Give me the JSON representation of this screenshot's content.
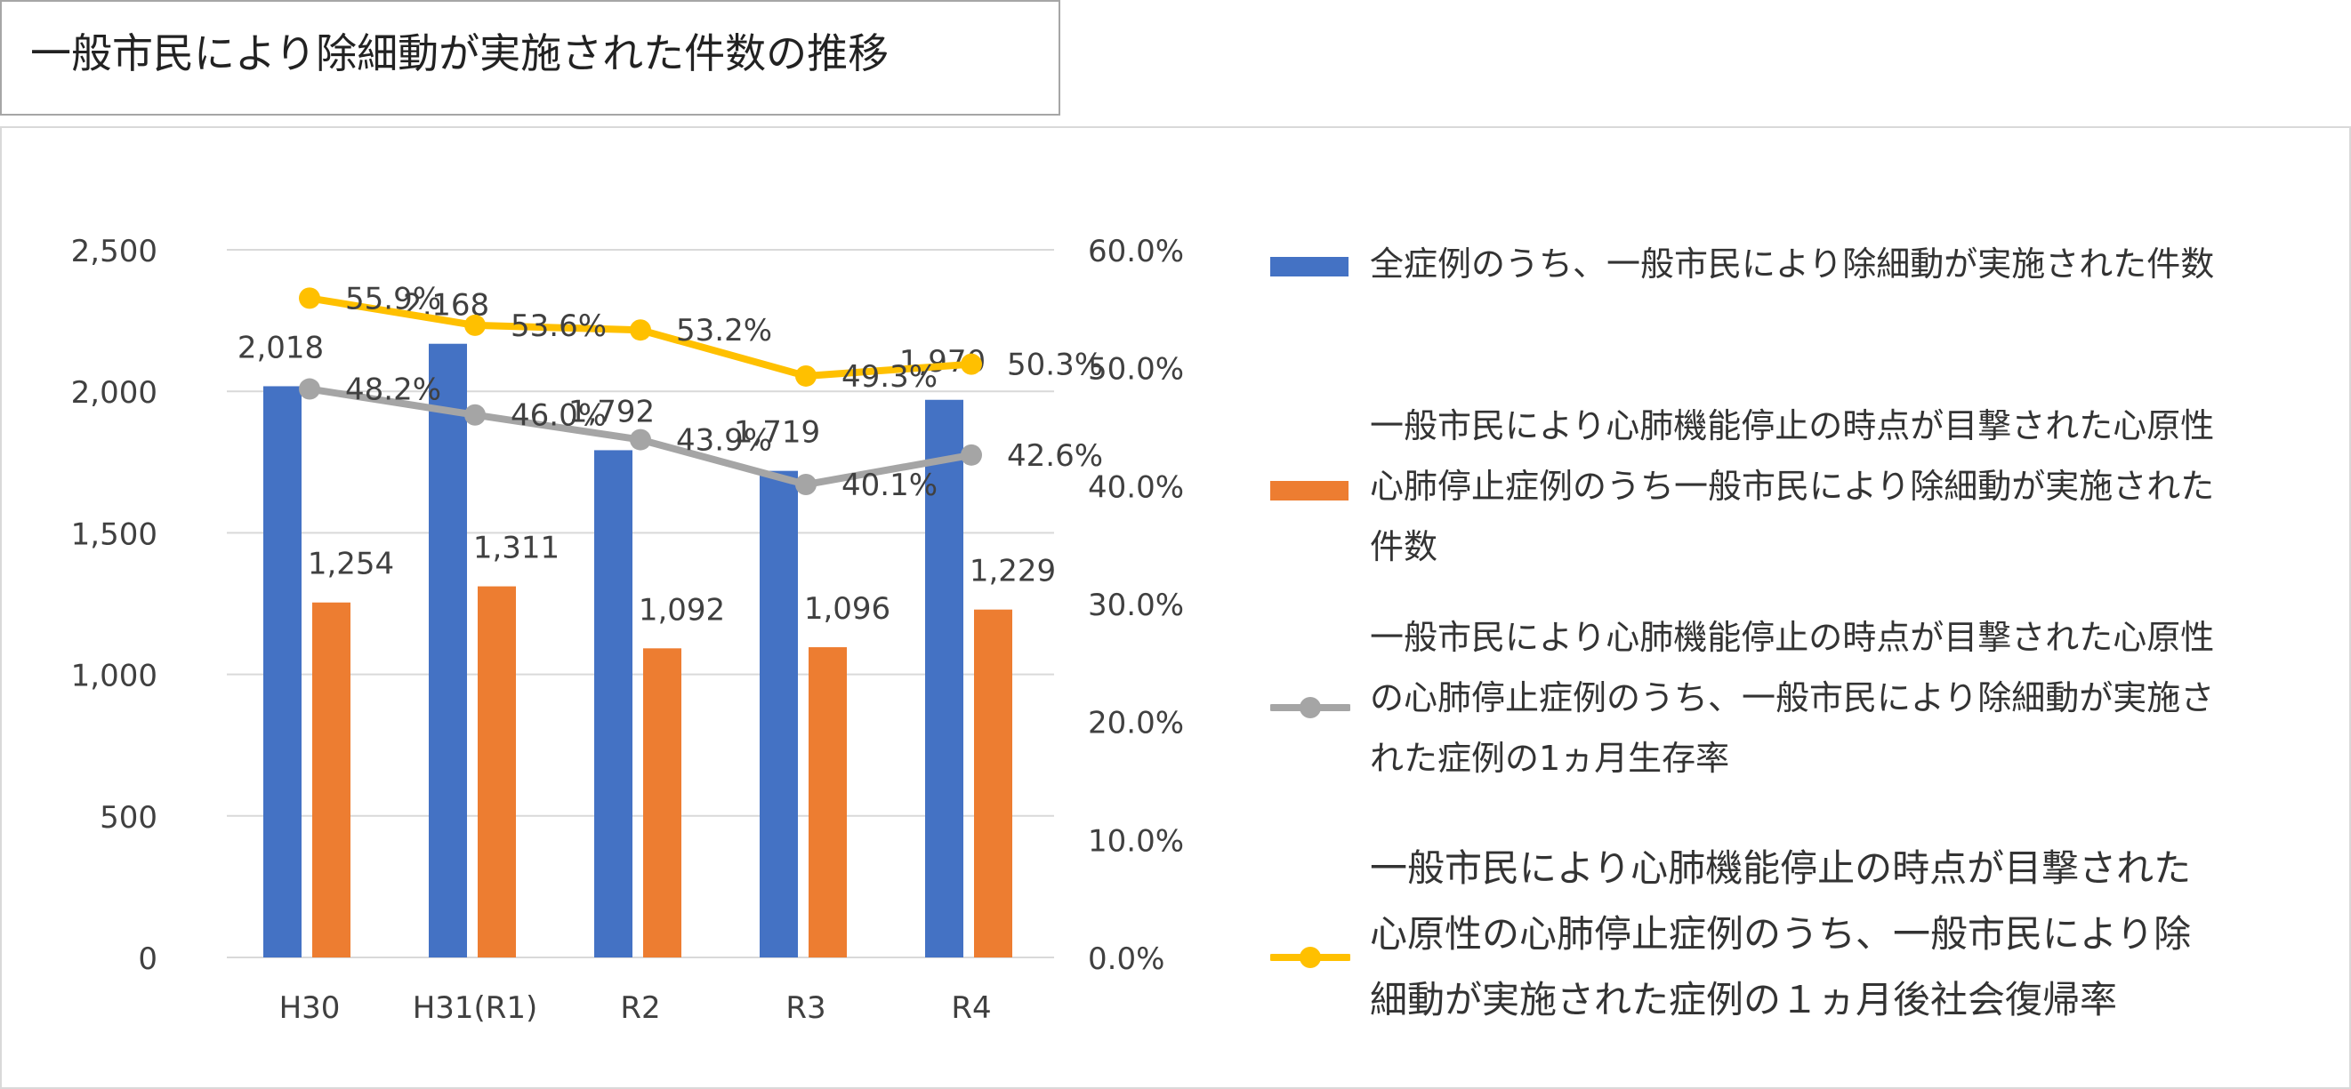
{
  "title": "一般市民により除細動が実施された件数の推移",
  "colors": {
    "series1": "#4472c4",
    "series2": "#ed7d31",
    "series3": "#a5a5a5",
    "series4": "#ffc000",
    "grid": "#d9d9d9",
    "text": "#404040"
  },
  "legend": {
    "item1": "全症例のうち、一般市民により除細動が実施された件数",
    "item2_lines": [
      "一般市民により心肺機能停止の時点が目撃された心原性",
      "心肺停止症例のうち一般市民により除細動が実施された",
      "件数"
    ],
    "item3_lines": [
      "一般市民により心肺機能停止の時点が目撃された心原性",
      "の心肺停止症例のうち、一般市民により除細動が実施さ",
      "れた症例の1ヵ月生存率"
    ],
    "item4_lines": [
      "一般市民により心肺機能停止の時点が目撃された",
      "心原性の心肺停止症例のうち、一般市民により除",
      "細動が実施された症例の１ヵ月後社会復帰率"
    ]
  },
  "chart_data": {
    "type": "bar",
    "categories": [
      "H30",
      "H31(R1)",
      "R2",
      "R3",
      "R4"
    ],
    "y_left": {
      "ylim": [
        0,
        2500
      ],
      "ticks": [
        "0",
        "500",
        "1,000",
        "1,500",
        "2,000",
        "2,500"
      ],
      "tick_values": [
        0,
        500,
        1000,
        1500,
        2000,
        2500
      ]
    },
    "y_right": {
      "ylim": [
        0,
        60
      ],
      "ticks": [
        "0.0%",
        "10.0%",
        "20.0%",
        "30.0%",
        "40.0%",
        "50.0%",
        "60.0%"
      ],
      "tick_values": [
        0,
        10,
        20,
        30,
        40,
        50,
        60
      ]
    },
    "grid": true,
    "legend_position": "right",
    "series": [
      {
        "name": "全症例のうち、一般市民により除細動が実施された件数",
        "type": "bar",
        "axis": "left",
        "values": [
          2018,
          2168,
          1792,
          1719,
          1970
        ],
        "labels": [
          "2,018",
          "2,168",
          "1,792",
          "1,719",
          "1,970"
        ]
      },
      {
        "name": "一般市民により心肺機能停止の時点が目撃された心原性心肺停止症例のうち一般市民により除細動が実施された件数",
        "type": "bar",
        "axis": "left",
        "values": [
          1254,
          1311,
          1092,
          1096,
          1229
        ],
        "labels": [
          "1,254",
          "1,311",
          "1,092",
          "1,096",
          "1,229"
        ]
      },
      {
        "name": "一般市民により心肺機能停止の時点が目撃された心原性の心肺停止症例のうち、一般市民により除細動が実施された症例の1ヵ月生存率",
        "type": "line",
        "axis": "right",
        "values": [
          48.2,
          46.0,
          43.9,
          40.1,
          42.6
        ],
        "labels": [
          "48.2%",
          "46.0%",
          "43.9%",
          "40.1%",
          "42.6%"
        ]
      },
      {
        "name": "一般市民により心肺機能停止の時点が目撃された心原性の心肺停止症例のうち、一般市民により除細動が実施された症例の１ヵ月後社会復帰率",
        "type": "line",
        "axis": "right",
        "values": [
          55.9,
          53.6,
          53.2,
          49.3,
          50.3
        ],
        "labels": [
          "55.9%",
          "53.6%",
          "53.2%",
          "49.3%",
          "50.3%"
        ]
      }
    ]
  }
}
